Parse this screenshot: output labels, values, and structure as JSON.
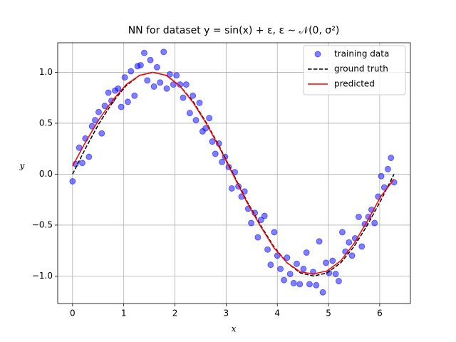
{
  "chart_data": {
    "type": "scatter",
    "title": "NN for dataset y = sin(x) + ε,  ε ∼ 𝒩(0, σ²)",
    "xlabel": "x",
    "ylabel": "y",
    "xlim": [
      -0.29,
      6.6
    ],
    "ylim": [
      -1.27,
      1.29
    ],
    "xticks": [
      0,
      1,
      2,
      3,
      4,
      5,
      6
    ],
    "yticks": [
      {
        "value": -1.0,
        "label": "−1.0"
      },
      {
        "value": -0.5,
        "label": "−0.5"
      },
      {
        "value": 0.0,
        "label": "0.0"
      },
      {
        "value": 0.5,
        "label": "0.5"
      },
      {
        "value": 1.0,
        "label": "1.0"
      }
    ],
    "grid": true,
    "legend": "upper right",
    "series": [
      {
        "name": "training data",
        "type": "scatter",
        "color": "#0000ff",
        "alpha": 0.5,
        "x": [
          0.0,
          0.06,
          0.13,
          0.19,
          0.25,
          0.32,
          0.38,
          0.44,
          0.51,
          0.57,
          0.63,
          0.7,
          0.76,
          0.83,
          0.89,
          0.95,
          1.02,
          1.08,
          1.14,
          1.21,
          1.27,
          1.33,
          1.4,
          1.46,
          1.52,
          1.59,
          1.65,
          1.71,
          1.78,
          1.84,
          1.9,
          1.97,
          2.03,
          2.1,
          2.16,
          2.22,
          2.29,
          2.35,
          2.41,
          2.48,
          2.54,
          2.6,
          2.67,
          2.73,
          2.79,
          2.86,
          2.92,
          2.98,
          3.05,
          3.11,
          3.17,
          3.24,
          3.3,
          3.36,
          3.43,
          3.49,
          3.56,
          3.62,
          3.68,
          3.75,
          3.81,
          3.87,
          3.94,
          4.0,
          4.06,
          4.13,
          4.19,
          4.25,
          4.32,
          4.38,
          4.44,
          4.51,
          4.57,
          4.63,
          4.7,
          4.76,
          4.82,
          4.89,
          4.95,
          5.01,
          5.08,
          5.14,
          5.2,
          5.27,
          5.33,
          5.4,
          5.46,
          5.52,
          5.59,
          5.65,
          5.71,
          5.78,
          5.84,
          5.9,
          5.97,
          6.03,
          6.09,
          6.16,
          6.22,
          6.28
        ],
        "values": [
          -0.07,
          0.1,
          0.26,
          0.11,
          0.35,
          0.17,
          0.47,
          0.53,
          0.61,
          0.4,
          0.67,
          0.8,
          0.72,
          0.82,
          0.84,
          0.66,
          0.95,
          0.71,
          1.01,
          0.77,
          1.06,
          1.07,
          1.19,
          0.92,
          1.12,
          0.86,
          1.05,
          0.9,
          1.2,
          0.84,
          0.98,
          0.88,
          0.97,
          0.88,
          0.75,
          0.88,
          0.6,
          0.77,
          0.53,
          0.7,
          0.42,
          0.45,
          0.55,
          0.32,
          0.2,
          0.3,
          0.12,
          0.17,
          0.07,
          -0.14,
          0.02,
          -0.12,
          -0.22,
          -0.17,
          -0.34,
          -0.48,
          -0.38,
          -0.62,
          -0.45,
          -0.41,
          -0.74,
          -0.89,
          -0.57,
          -0.8,
          -0.93,
          -1.04,
          -0.82,
          -0.98,
          -1.07,
          -0.88,
          -1.08,
          -0.93,
          -0.77,
          -1.08,
          -0.96,
          -1.09,
          -0.66,
          -1.16,
          -0.87,
          -0.97,
          -0.85,
          -0.98,
          -1.05,
          -0.57,
          -0.76,
          -0.67,
          -0.8,
          -0.63,
          -0.42,
          -0.71,
          -0.49,
          -0.42,
          -0.35,
          -0.48,
          -0.22,
          -0.02,
          -0.13,
          0.05,
          0.16,
          -0.08
        ]
      },
      {
        "name": "ground truth",
        "type": "line",
        "dash": true,
        "color": "#000000",
        "x": [
          0,
          0.26,
          0.52,
          0.79,
          1.05,
          1.31,
          1.57,
          1.83,
          2.09,
          2.36,
          2.62,
          2.88,
          3.14,
          3.4,
          3.67,
          3.93,
          4.19,
          4.45,
          4.71,
          4.97,
          5.24,
          5.5,
          5.76,
          6.02,
          6.28
        ],
        "values": [
          0,
          0.26,
          0.5,
          0.71,
          0.87,
          0.97,
          1,
          0.97,
          0.87,
          0.71,
          0.5,
          0.26,
          0,
          -0.26,
          -0.5,
          -0.71,
          -0.87,
          -0.97,
          -1,
          -0.97,
          -0.87,
          -0.71,
          -0.5,
          -0.26,
          0
        ]
      },
      {
        "name": "predicted",
        "type": "line",
        "dash": false,
        "color": "#ff0000",
        "x": [
          0,
          0.26,
          0.52,
          0.79,
          1.05,
          1.31,
          1.57,
          1.83,
          2.09,
          2.36,
          2.62,
          2.88,
          3.14,
          3.4,
          3.67,
          3.93,
          4.19,
          4.45,
          4.71,
          4.97,
          5.24,
          5.5,
          5.76,
          6.02,
          6.28
        ],
        "values": [
          0.08,
          0.32,
          0.54,
          0.73,
          0.88,
          0.97,
          1.0,
          0.97,
          0.87,
          0.7,
          0.49,
          0.25,
          -0.01,
          -0.27,
          -0.51,
          -0.72,
          -0.87,
          -0.96,
          -0.98,
          -0.95,
          -0.85,
          -0.68,
          -0.46,
          -0.22,
          -0.05
        ]
      }
    ]
  }
}
